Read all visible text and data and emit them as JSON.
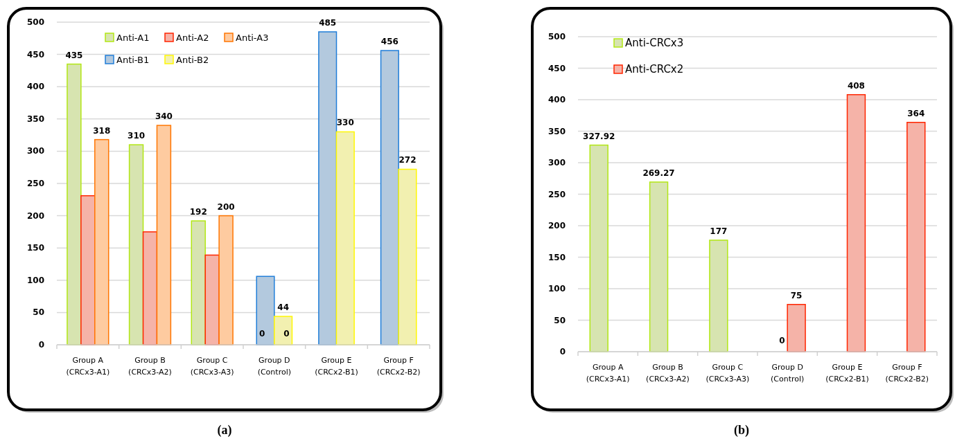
{
  "chart_data": [
    {
      "type": "bar",
      "title": "(a)",
      "categories": [
        "Group A\n(CRCx3-A1)",
        "Group B\n(CRCx3-A2)",
        "Group C\n(CRCx3-A3)",
        "Group D\n(Control)",
        "Group E\n(CRCx2-B1)",
        "Group F\n(CRCx2-B2)"
      ],
      "series": [
        {
          "name": "Anti-A1",
          "color": "#d7e4b0",
          "values": [
            435,
            310,
            192,
            null,
            null,
            null
          ],
          "value_labels": [
            "435",
            "310",
            "192",
            null,
            null,
            null
          ]
        },
        {
          "name": "Anti-A2",
          "color": "#f5b3a8",
          "values": [
            231,
            175,
            139,
            null,
            null,
            null
          ],
          "value_labels": [
            null,
            null,
            null,
            null,
            null,
            null
          ]
        },
        {
          "name": "Anti-A3",
          "color": "#fecba0",
          "values": [
            318,
            340,
            200,
            null,
            null,
            null
          ],
          "value_labels": [
            "318",
            "340",
            "200",
            null,
            null,
            null
          ]
        },
        {
          "name": "Anti-B1",
          "color": "#b3c9de",
          "values": [
            null,
            null,
            null,
            106,
            485,
            456
          ],
          "value_labels": [
            null,
            null,
            null,
            null,
            "485",
            "456"
          ]
        },
        {
          "name": "Anti-B2",
          "color": "#f2f0b0",
          "values": [
            null,
            null,
            null,
            44,
            330,
            272
          ],
          "value_labels": [
            null,
            null,
            null,
            "44",
            "330",
            "272"
          ]
        }
      ],
      "annotations": [
        {
          "text": "0",
          "x": "Group D\n(Control)",
          "y": 0
        },
        {
          "text": "0",
          "x": "Group D\n(Control)",
          "y": 0
        }
      ],
      "ylim": [
        0,
        500
      ],
      "yticks": [
        0,
        50,
        100,
        150,
        200,
        250,
        300,
        350,
        400,
        450,
        500
      ],
      "grid": "y",
      "legend": "top left"
    },
    {
      "type": "bar",
      "title": "(b)",
      "categories": [
        "Group A\n(CRCx3-A1)",
        "Group B\n(CRCx3-A2)",
        "Group C\n(CRCx3-A3)",
        "Group D\n(Control)",
        "Group E\n(CRCx2-B1)",
        "Group F\n(CRCx2-B2)"
      ],
      "series": [
        {
          "name": "Anti-CRCx3",
          "color": "#d7e4b0",
          "values": [
            327.92,
            269.27,
            177,
            null,
            null,
            null
          ],
          "value_labels": [
            "327.92",
            "269.27",
            "177",
            null,
            null,
            null
          ]
        },
        {
          "name": "Anti-CRCx2",
          "color": "#f5b3a8",
          "values": [
            null,
            null,
            null,
            75,
            408,
            364
          ],
          "value_labels": [
            null,
            null,
            null,
            "75",
            "408",
            "364"
          ]
        }
      ],
      "annotations": [
        {
          "text": "0",
          "x": "Group D\n(Control)",
          "y": 0
        }
      ],
      "ylim": [
        0,
        500
      ],
      "yticks": [
        0,
        50,
        100,
        150,
        200,
        250,
        300,
        350,
        400,
        450,
        500
      ],
      "grid": "y",
      "legend": "top left"
    }
  ]
}
